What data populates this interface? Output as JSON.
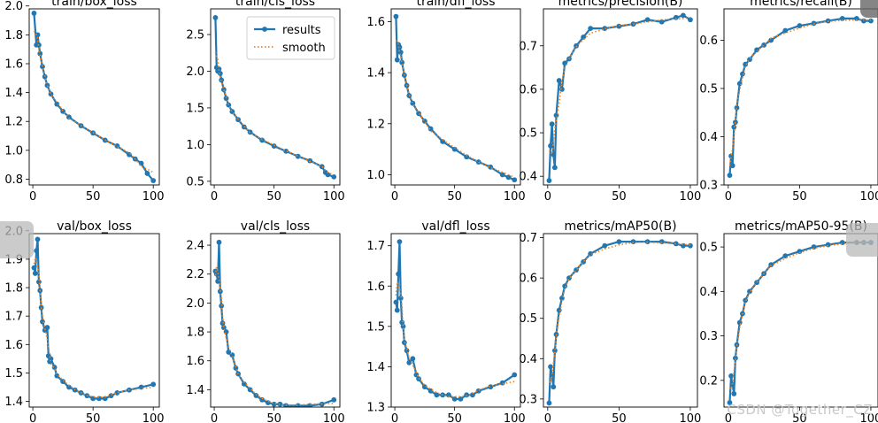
{
  "watermark": "CSDN @Together_CZ",
  "legend": {
    "results": "results",
    "smooth": "smooth"
  },
  "colors": {
    "results": "#1f77b4",
    "smooth": "#ff7f0e"
  },
  "chart_data": [
    {
      "type": "line",
      "title": "train/box_loss",
      "xlim": [
        -3,
        105
      ],
      "ylim": [
        0.76,
        1.98
      ],
      "xticks": [
        0,
        50,
        100
      ],
      "yticks": [
        0.8,
        1.0,
        1.2,
        1.4,
        1.6,
        1.8,
        2.0
      ],
      "x": [
        1,
        3,
        4,
        5,
        6,
        8,
        10,
        12,
        15,
        20,
        25,
        30,
        40,
        50,
        60,
        70,
        80,
        85,
        90,
        95,
        100
      ],
      "series": [
        {
          "name": "results",
          "values": [
            1.95,
            1.73,
            1.8,
            1.73,
            1.67,
            1.58,
            1.51,
            1.45,
            1.39,
            1.32,
            1.27,
            1.23,
            1.17,
            1.12,
            1.07,
            1.03,
            0.97,
            0.94,
            0.91,
            0.84,
            0.79
          ]
        }
      ]
    },
    {
      "type": "line",
      "title": "train/cls_loss",
      "legend": true,
      "xlim": [
        -3,
        105
      ],
      "ylim": [
        0.45,
        2.85
      ],
      "xticks": [
        0,
        50,
        100
      ],
      "yticks": [
        0.5,
        1.0,
        1.5,
        2.0,
        2.5
      ],
      "x": [
        1,
        2,
        3,
        4,
        5,
        6,
        8,
        10,
        12,
        15,
        20,
        25,
        30,
        40,
        50,
        60,
        70,
        80,
        90,
        93,
        95,
        100
      ],
      "series": [
        {
          "name": "results",
          "values": [
            2.73,
            2.05,
            2.0,
            2.03,
            1.97,
            1.88,
            1.75,
            1.63,
            1.54,
            1.45,
            1.34,
            1.24,
            1.17,
            1.06,
            0.98,
            0.91,
            0.84,
            0.78,
            0.7,
            0.62,
            0.59,
            0.56
          ]
        }
      ]
    },
    {
      "type": "line",
      "title": "train/dfl_loss",
      "xlim": [
        -3,
        105
      ],
      "ylim": [
        0.96,
        1.65
      ],
      "xticks": [
        0,
        50,
        100
      ],
      "yticks": [
        1.0,
        1.2,
        1.4,
        1.6
      ],
      "x": [
        1,
        2,
        3,
        4,
        5,
        6,
        8,
        10,
        12,
        15,
        20,
        25,
        30,
        40,
        50,
        60,
        70,
        80,
        90,
        95,
        100
      ],
      "series": [
        {
          "name": "results",
          "values": [
            1.62,
            1.45,
            1.51,
            1.5,
            1.48,
            1.44,
            1.39,
            1.35,
            1.31,
            1.28,
            1.24,
            1.21,
            1.18,
            1.13,
            1.1,
            1.07,
            1.05,
            1.03,
            1.0,
            0.99,
            0.98
          ]
        }
      ]
    },
    {
      "type": "line",
      "title": "metrics/precision(B)",
      "xlim": [
        -3,
        105
      ],
      "ylim": [
        0.38,
        0.785
      ],
      "xticks": [
        0,
        50,
        100
      ],
      "yticks": [
        0.4,
        0.5,
        0.6,
        0.7
      ],
      "x": [
        1,
        2,
        3,
        4,
        5,
        6,
        8,
        10,
        12,
        15,
        20,
        25,
        30,
        40,
        50,
        60,
        70,
        80,
        90,
        95,
        100
      ],
      "series": [
        {
          "name": "results",
          "values": [
            0.39,
            0.47,
            0.52,
            0.45,
            0.42,
            0.54,
            0.62,
            0.6,
            0.66,
            0.67,
            0.7,
            0.72,
            0.74,
            0.74,
            0.745,
            0.75,
            0.76,
            0.755,
            0.765,
            0.77,
            0.76
          ]
        }
      ]
    },
    {
      "type": "line",
      "title": "metrics/recall(B)",
      "xlim": [
        -3,
        105
      ],
      "ylim": [
        0.3,
        0.665
      ],
      "xticks": [
        0,
        50,
        100
      ],
      "yticks": [
        0.3,
        0.4,
        0.5,
        0.6
      ],
      "x": [
        1,
        2,
        3,
        4,
        5,
        6,
        8,
        10,
        12,
        15,
        20,
        25,
        30,
        40,
        50,
        60,
        70,
        80,
        90,
        95,
        100
      ],
      "series": [
        {
          "name": "results",
          "values": [
            0.32,
            0.36,
            0.34,
            0.42,
            0.43,
            0.46,
            0.51,
            0.53,
            0.55,
            0.56,
            0.58,
            0.59,
            0.6,
            0.62,
            0.63,
            0.635,
            0.64,
            0.645,
            0.645,
            0.64,
            0.64
          ]
        }
      ]
    },
    {
      "type": "line",
      "title": "val/box_loss",
      "xlim": [
        -3,
        105
      ],
      "ylim": [
        1.38,
        1.99
      ],
      "xticks": [
        0,
        50,
        100
      ],
      "yticks": [
        1.4,
        1.5,
        1.6,
        1.7,
        1.8,
        1.9,
        2.0
      ],
      "x": [
        1,
        2,
        3,
        4,
        5,
        6,
        7,
        8,
        10,
        12,
        13,
        14,
        15,
        18,
        20,
        25,
        30,
        35,
        40,
        45,
        50,
        55,
        60,
        65,
        70,
        80,
        90,
        100
      ],
      "series": [
        {
          "name": "results",
          "values": [
            1.87,
            1.85,
            1.93,
            1.97,
            1.82,
            1.79,
            1.73,
            1.68,
            1.65,
            1.66,
            1.56,
            1.54,
            1.55,
            1.52,
            1.49,
            1.47,
            1.45,
            1.44,
            1.43,
            1.42,
            1.41,
            1.41,
            1.41,
            1.42,
            1.43,
            1.44,
            1.45,
            1.46
          ]
        }
      ]
    },
    {
      "type": "line",
      "title": "val/cls_loss",
      "xlim": [
        -3,
        105
      ],
      "ylim": [
        1.28,
        2.48
      ],
      "xticks": [
        0,
        50,
        100
      ],
      "yticks": [
        1.4,
        1.6,
        1.8,
        2.0,
        2.2,
        2.4
      ],
      "x": [
        1,
        2,
        3,
        4,
        5,
        6,
        7,
        8,
        10,
        12,
        15,
        18,
        20,
        25,
        30,
        35,
        40,
        45,
        50,
        55,
        60,
        70,
        80,
        90,
        100
      ],
      "series": [
        {
          "name": "results",
          "values": [
            2.22,
            2.2,
            2.15,
            2.42,
            2.08,
            1.98,
            1.86,
            1.83,
            1.8,
            1.66,
            1.64,
            1.55,
            1.51,
            1.44,
            1.4,
            1.36,
            1.33,
            1.31,
            1.3,
            1.3,
            1.29,
            1.29,
            1.29,
            1.3,
            1.33
          ]
        }
      ]
    },
    {
      "type": "line",
      "title": "val/dfl_loss",
      "xlim": [
        -3,
        105
      ],
      "ylim": [
        1.3,
        1.73
      ],
      "xticks": [
        0,
        50,
        100
      ],
      "yticks": [
        1.3,
        1.4,
        1.5,
        1.6,
        1.7
      ],
      "x": [
        1,
        2,
        3,
        4,
        5,
        6,
        7,
        8,
        10,
        12,
        15,
        18,
        20,
        25,
        30,
        35,
        40,
        45,
        50,
        55,
        60,
        65,
        70,
        80,
        90,
        100
      ],
      "series": [
        {
          "name": "results",
          "values": [
            1.56,
            1.54,
            1.63,
            1.71,
            1.57,
            1.51,
            1.5,
            1.46,
            1.44,
            1.41,
            1.42,
            1.38,
            1.37,
            1.35,
            1.34,
            1.33,
            1.33,
            1.33,
            1.32,
            1.32,
            1.33,
            1.33,
            1.34,
            1.35,
            1.36,
            1.38
          ]
        }
      ]
    },
    {
      "type": "line",
      "title": "metrics/mAP50(B)",
      "xlim": [
        -3,
        105
      ],
      "ylim": [
        0.28,
        0.71
      ],
      "xticks": [
        0,
        50,
        100
      ],
      "yticks": [
        0.3,
        0.4,
        0.5,
        0.6,
        0.7
      ],
      "x": [
        1,
        2,
        3,
        4,
        5,
        6,
        8,
        10,
        12,
        15,
        20,
        25,
        30,
        40,
        50,
        60,
        70,
        80,
        90,
        95,
        100
      ],
      "series": [
        {
          "name": "results",
          "values": [
            0.29,
            0.38,
            0.36,
            0.33,
            0.42,
            0.46,
            0.52,
            0.55,
            0.58,
            0.6,
            0.62,
            0.64,
            0.66,
            0.68,
            0.69,
            0.69,
            0.69,
            0.69,
            0.685,
            0.68,
            0.68
          ]
        }
      ]
    },
    {
      "type": "line",
      "title": "metrics/mAP50-95(B)",
      "xlim": [
        -3,
        105
      ],
      "ylim": [
        0.14,
        0.53
      ],
      "xticks": [
        0,
        50,
        100
      ],
      "yticks": [
        0.2,
        0.3,
        0.4,
        0.5
      ],
      "x": [
        1,
        2,
        3,
        4,
        5,
        6,
        8,
        10,
        12,
        15,
        20,
        25,
        30,
        40,
        50,
        60,
        70,
        80,
        90,
        95,
        100
      ],
      "series": [
        {
          "name": "results",
          "values": [
            0.15,
            0.21,
            0.19,
            0.17,
            0.25,
            0.28,
            0.33,
            0.35,
            0.38,
            0.4,
            0.42,
            0.44,
            0.46,
            0.48,
            0.49,
            0.5,
            0.505,
            0.51,
            0.51,
            0.51,
            0.51
          ]
        }
      ]
    }
  ]
}
